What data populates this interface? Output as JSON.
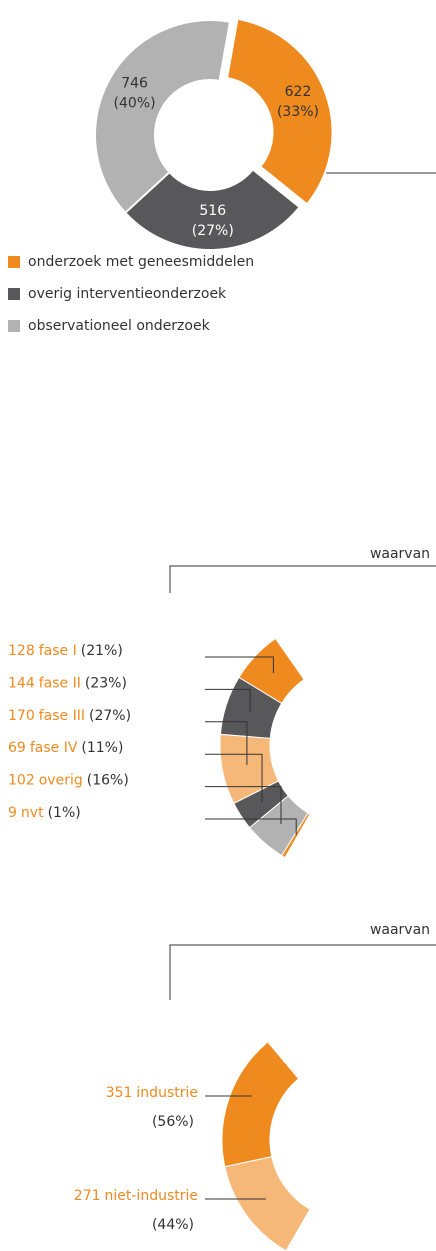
{
  "chart_data": [
    {
      "type": "donut",
      "categories": [
        "onderzoek met geneesmiddelen",
        "overig interventieonderzoek",
        "observationeel onderzoek"
      ],
      "values": [
        622,
        516,
        746
      ],
      "percent_labels": [
        "(33%)",
        "(27%)",
        "(40%)"
      ],
      "colors": [
        "#ef8a1f",
        "#58585a",
        "#b2b2b2"
      ]
    },
    {
      "type": "partial-ring",
      "title": "waarvan",
      "categories": [
        "fase I",
        "fase II",
        "fase III",
        "fase IV",
        "overig",
        "nvt"
      ],
      "values": [
        128,
        144,
        170,
        69,
        102,
        9
      ],
      "percent_labels": [
        "(21%)",
        "(23%)",
        "(27%)",
        "(11%)",
        "(16%)",
        "(1%)"
      ],
      "colors": [
        "#ef8a1f",
        "#58585a",
        "#f6b879",
        "#58585a",
        "#b2b2b2",
        "#ef8a1f"
      ]
    },
    {
      "type": "partial-ring-right",
      "title": "waarvan",
      "categories": [
        "industrie",
        "niet-industrie"
      ],
      "values": [
        351,
        271
      ],
      "percent_labels": [
        "(56%)",
        "(44%)"
      ],
      "colors": [
        "#ef8a1f",
        "#f6b879"
      ]
    }
  ]
}
